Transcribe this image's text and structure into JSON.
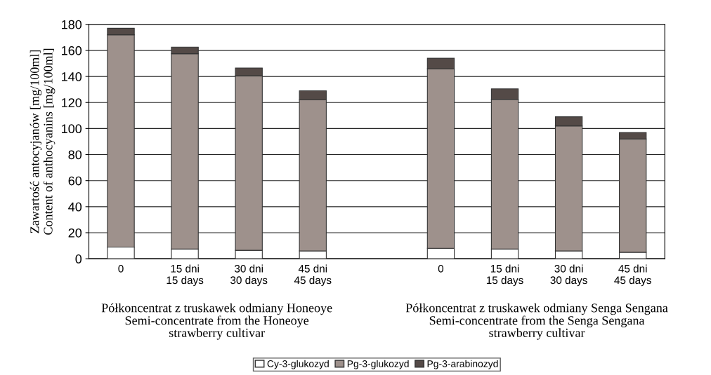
{
  "chart_data": {
    "type": "bar",
    "stacked": true,
    "ylabel": "Zawartość antocyjanów [mg/100ml]\nContent of anthocyanins [mg/100ml]",
    "categories": [
      "0",
      "15 dni\n15 days",
      "30 dni\n30 days",
      "45 dni\n45 days",
      null,
      "0",
      "15 dni\n15 days",
      "30 dni\n30 days",
      "45 dni\n45 days"
    ],
    "series": [
      {
        "name": "Cy-3-glukozyd",
        "color": "#ffffff",
        "values": [
          9,
          7.5,
          6.5,
          6,
          null,
          8,
          7.5,
          6,
          5
        ]
      },
      {
        "name": "Pg-3-glukozyd",
        "color": "#9e918c",
        "values": [
          163,
          150,
          134,
          116,
          null,
          138,
          115,
          96,
          87
        ]
      },
      {
        "name": "Pg-3-arabinozyd",
        "color": "#544a47",
        "values": [
          5,
          5,
          6,
          7,
          null,
          8,
          8,
          7,
          5
        ]
      }
    ],
    "ylim": [
      0,
      180
    ],
    "yticks": [
      0,
      20,
      40,
      60,
      80,
      100,
      120,
      140,
      160,
      180
    ],
    "grid": "y",
    "legend": "bottom",
    "annotations": [
      "Półkoncentrat z truskawek odmiany Honeoye\nSemi-concentrate from the Honeoye\nstrawberry cultivar",
      "Półkoncentrat z truskawek odmiany Senga Sengana\nSemi-concentrate from the Senga Sengana\nstrawberry cultivar"
    ]
  }
}
